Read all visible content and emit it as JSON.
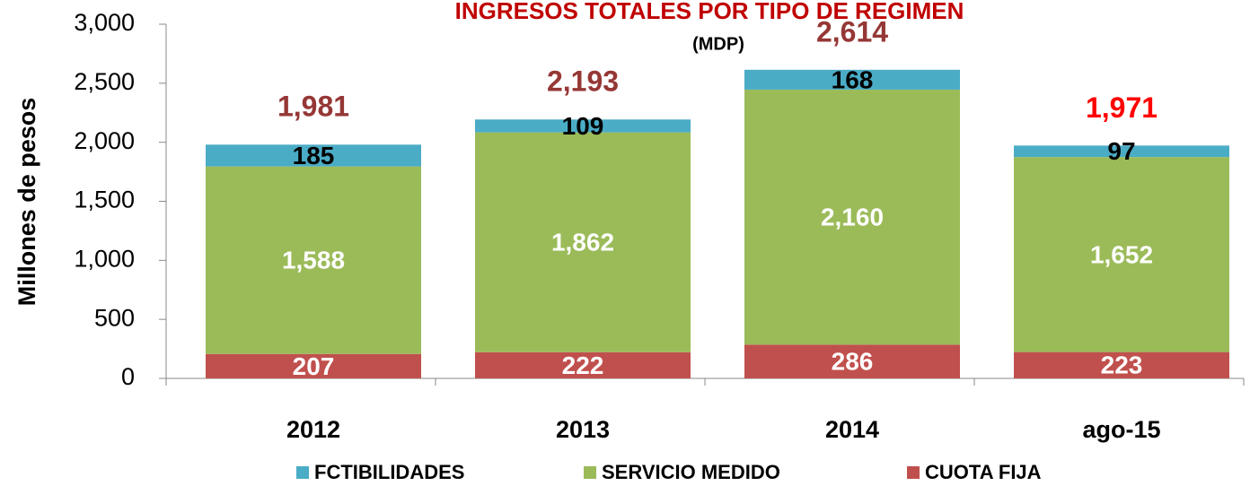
{
  "chart_data": {
    "type": "stacked-bar",
    "title": "INGRESOS TOTALES POR TIPO DE REGIMEN",
    "subtitle": "(MDP)",
    "y_label": "Millones de pesos",
    "categories": [
      "2012",
      "2013",
      "2014",
      "ago-15"
    ],
    "series": [
      {
        "name": "CUOTA FIJA",
        "color": "#c0504d",
        "label_color": "#ffffff",
        "values": [
          207,
          222,
          286,
          223
        ]
      },
      {
        "name": "SERVICIO MEDIDO",
        "color": "#9bbb59",
        "label_color": "#ffffff",
        "values": [
          1588,
          1862,
          2160,
          1652
        ],
        "value_labels": [
          "1,588",
          "1,862",
          "2,160",
          "1,652"
        ]
      },
      {
        "name": "FCTIBILIDADES",
        "color": "#4bacc6",
        "label_color": "#000000",
        "values": [
          185,
          109,
          168,
          97
        ]
      }
    ],
    "legend_order": [
      2,
      1,
      0
    ],
    "totals": [
      1981,
      2193,
      2614,
      1971
    ],
    "total_labels": [
      "1,981",
      "2,193",
      "2,614",
      "1,971"
    ],
    "total_colors": [
      "#953735",
      "#953735",
      "#953735",
      "#ff0000"
    ],
    "ylim": [
      0,
      3000
    ],
    "yticks": [
      0,
      500,
      {
        "value": 1000,
        "label": "1,000"
      },
      {
        "value": 1500,
        "label": "1,500"
      },
      {
        "value": 2000,
        "label": "2,000"
      },
      {
        "value": 2500,
        "label": "2,500"
      },
      {
        "value": 3000,
        "label": "3,000"
      }
    ],
    "legend": "bottom"
  }
}
